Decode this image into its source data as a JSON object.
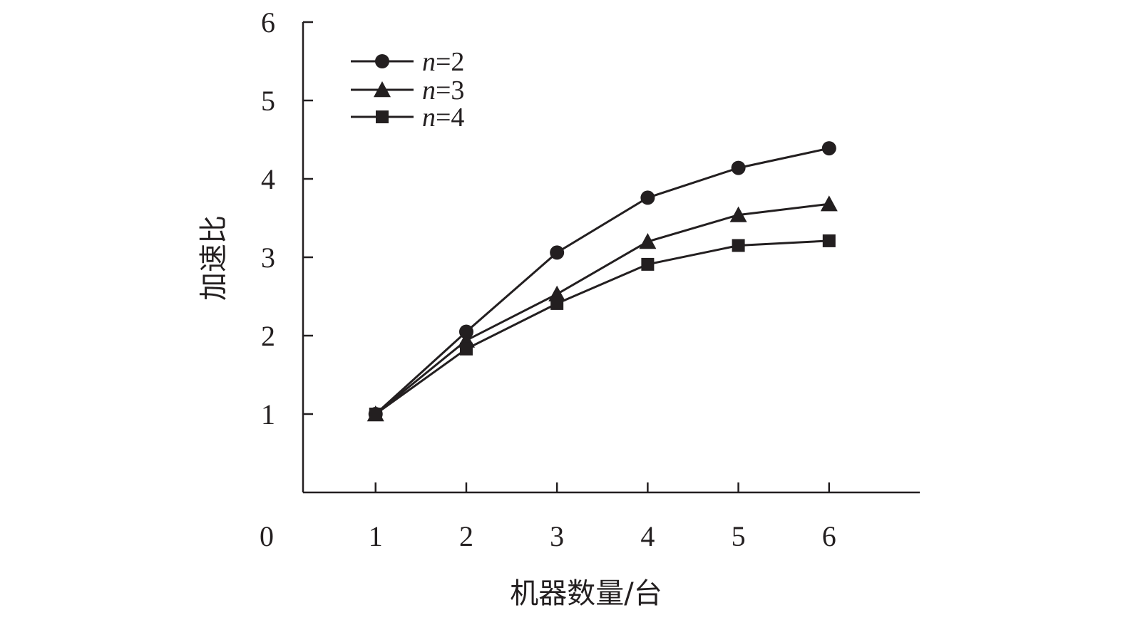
{
  "chart_data": {
    "type": "line",
    "title": "",
    "xlabel": "机器数量/台",
    "ylabel": "加速比",
    "x_origin_label": "0",
    "x": [
      1,
      2,
      3,
      4,
      5,
      6
    ],
    "x_tick_labels": [
      "1",
      "2",
      "3",
      "4",
      "5",
      "6"
    ],
    "xlim": [
      0.2,
      7.0
    ],
    "y_ticks": [
      1,
      2,
      3,
      4,
      5,
      6
    ],
    "y_tick_labels": [
      "1",
      "2",
      "3",
      "4",
      "5",
      "6"
    ],
    "ylim": [
      0,
      6
    ],
    "grid": false,
    "legend_position": "top-left",
    "line_color": "#231f20",
    "series": [
      {
        "name": "n=2",
        "name_var": "n",
        "name_rest": "=2",
        "marker": "circle",
        "values": [
          1.0,
          2.05,
          3.06,
          3.76,
          4.14,
          4.39
        ]
      },
      {
        "name": "n=3",
        "name_var": "n",
        "name_rest": "=3",
        "marker": "triangle",
        "values": [
          1.0,
          1.94,
          2.53,
          3.2,
          3.54,
          3.68
        ]
      },
      {
        "name": "n=4",
        "name_var": "n",
        "name_rest": "=4",
        "marker": "square",
        "values": [
          1.0,
          1.83,
          2.41,
          2.91,
          3.15,
          3.21
        ]
      }
    ]
  }
}
